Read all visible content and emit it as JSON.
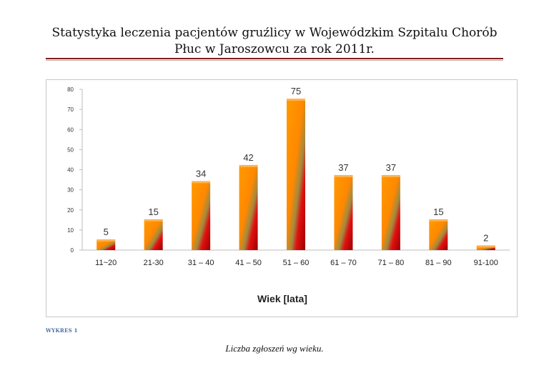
{
  "document": {
    "title_line1": "Statystyka leczenia pacjentów gruźlicy w Wojewódzkim Szpitalu Chorób",
    "title_line2": "Płuc w Jaroszowcu za rok 2011r.",
    "figure_tag": "WYKRES 1",
    "figure_caption": "Liczba zgłoszeń wg wieku."
  },
  "colors": {
    "bar_orange": "#ff8c00",
    "bar_red": "#e00000",
    "bar_top": "#ffb24d",
    "rule": "#7b1f1f"
  },
  "chart_data": {
    "type": "bar",
    "categories": [
      "11~20",
      "21-30",
      "31 – 40",
      "41 – 50",
      "51 – 60",
      "61 – 70",
      "71 – 80",
      "81 – 90",
      "91-100"
    ],
    "values": [
      5,
      15,
      34,
      42,
      75,
      37,
      37,
      15,
      2
    ],
    "title": "",
    "xlabel": "Wiek [lata]",
    "ylabel": "",
    "ylim": [
      0,
      80
    ],
    "yticks": [
      0,
      10,
      20,
      30,
      40,
      50,
      60,
      70,
      80
    ],
    "grid": false,
    "legend": "none"
  }
}
